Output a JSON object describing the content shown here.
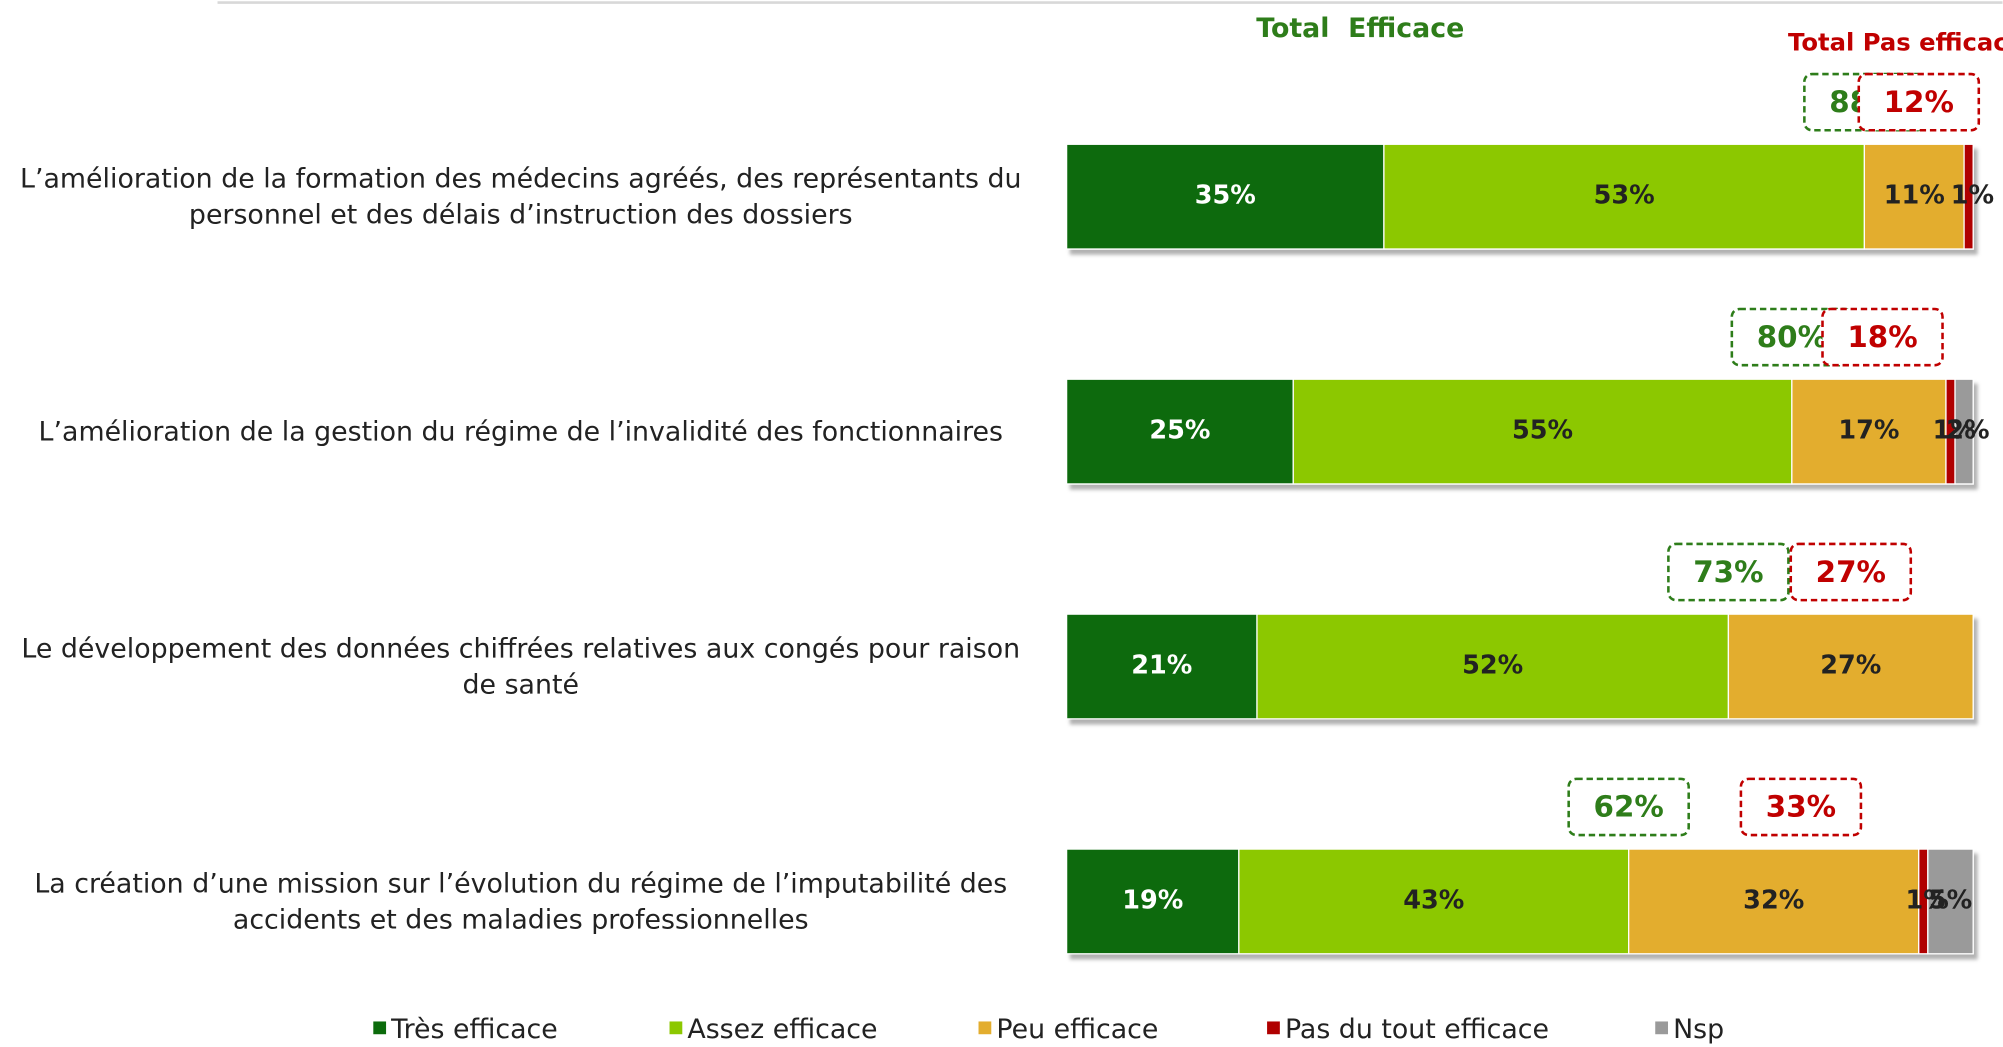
{
  "chart_data": {
    "type": "stacked_barh",
    "categories": [
      "L’amélioration de la formation des médecins agréés, des représentants du personnel et des délais d’instruction des dossiers",
      "L’amélioration de la gestion du régime de l’invalidité des fonctionnaires",
      "Le développement des données chiffrées relatives aux congés pour raison de santé",
      "La création d’une mission sur l’évolution du régime de l’imputabilité des accidents et des maladies professionnelles"
    ],
    "series": [
      {
        "name": "Très efficace",
        "color": "#0b6b0b",
        "values": [
          35,
          25,
          21,
          19
        ],
        "value_labels": [
          "35%",
          "25%",
          "21%",
          "19%"
        ]
      },
      {
        "name": "Assez efficace",
        "color": "#8cc800",
        "values": [
          53,
          55,
          52,
          43
        ],
        "value_labels": [
          "53%",
          "55%",
          "52%",
          "43%"
        ]
      },
      {
        "name": "Peu efficace",
        "color": "#e3ad2e",
        "values": [
          11,
          17,
          27,
          32
        ],
        "value_labels": [
          "11%",
          "17%",
          "27%",
          "32%"
        ]
      },
      {
        "name": "Pas du tout efficace",
        "color": "#b00000",
        "values": [
          1,
          1,
          null,
          1
        ],
        "value_labels": [
          "1%",
          "1%",
          null,
          "1%"
        ]
      },
      {
        "name": "Nsp",
        "color": "#9a9a9a",
        "values": [
          null,
          2,
          null,
          5
        ],
        "value_labels": [
          null,
          "2%",
          null,
          "5%"
        ]
      }
    ],
    "totals": [
      {
        "name": "Total  Efficace",
        "color": "#2e7d1a",
        "values": [
          88,
          80,
          73,
          62
        ],
        "value_labels": [
          "88%",
          "80%",
          "73%",
          "62%"
        ]
      },
      {
        "name": "Total Pas efficace",
        "color": "#c00000",
        "values": [
          12,
          18,
          27,
          33
        ],
        "value_labels": [
          "12%",
          "18%",
          "27%",
          "33%"
        ]
      }
    ],
    "xlim": [
      0,
      100
    ]
  }
}
